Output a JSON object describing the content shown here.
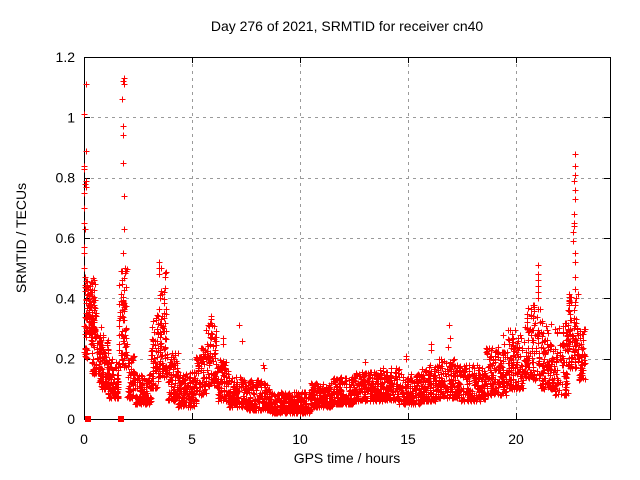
{
  "chart_data": {
    "type": "scatter",
    "title": "Day 276 of 2021, SRMTID for receiver cn40",
    "xlabel": "GPS time / hours",
    "ylabel": "SRMTID / TECUs",
    "xlim": [
      0,
      24.35
    ],
    "ylim": [
      0,
      1.2
    ],
    "xticks": [
      0,
      5,
      10,
      15,
      20
    ],
    "yticks": [
      0,
      0.2,
      0.4,
      0.6,
      0.8,
      1,
      1.2
    ],
    "ytick_labels": [
      "0",
      "0.2",
      "0.4",
      "0.6",
      "0.8",
      "1",
      "1.2"
    ],
    "grid": true,
    "grid_color": "#9a9a9a",
    "marker": "plus",
    "marker_color": "#ff0000",
    "border_color": "#000000",
    "band_key": [
      "t_start",
      "t_end",
      "y_min",
      "y_max",
      "n_points"
    ],
    "band_segments": [
      [
        0.0,
        0.15,
        0.2,
        0.46,
        40
      ],
      [
        0.15,
        0.55,
        0.28,
        0.47,
        90
      ],
      [
        0.3,
        0.8,
        0.15,
        0.32,
        70
      ],
      [
        0.7,
        1.15,
        0.1,
        0.28,
        75
      ],
      [
        1.1,
        1.6,
        0.07,
        0.2,
        85
      ],
      [
        1.6,
        2.0,
        0.17,
        0.5,
        80
      ],
      [
        2.0,
        2.35,
        0.07,
        0.22,
        60
      ],
      [
        2.35,
        3.1,
        0.05,
        0.15,
        115
      ],
      [
        3.1,
        3.45,
        0.1,
        0.35,
        60
      ],
      [
        3.45,
        3.85,
        0.14,
        0.5,
        70
      ],
      [
        3.85,
        4.35,
        0.06,
        0.22,
        80
      ],
      [
        4.35,
        5.2,
        0.04,
        0.16,
        130
      ],
      [
        5.2,
        5.65,
        0.08,
        0.25,
        70
      ],
      [
        5.65,
        6.15,
        0.11,
        0.32,
        75
      ],
      [
        6.15,
        6.7,
        0.06,
        0.2,
        80
      ],
      [
        6.7,
        7.5,
        0.04,
        0.14,
        115
      ],
      [
        7.5,
        8.6,
        0.03,
        0.13,
        155
      ],
      [
        8.6,
        10.5,
        0.02,
        0.09,
        265
      ],
      [
        10.5,
        11.5,
        0.04,
        0.12,
        140
      ],
      [
        11.5,
        12.5,
        0.05,
        0.14,
        140
      ],
      [
        12.5,
        13.6,
        0.06,
        0.16,
        150
      ],
      [
        13.6,
        14.6,
        0.06,
        0.17,
        140
      ],
      [
        14.6,
        15.6,
        0.05,
        0.15,
        140
      ],
      [
        15.6,
        16.4,
        0.06,
        0.18,
        110
      ],
      [
        16.4,
        17.4,
        0.07,
        0.2,
        135
      ],
      [
        17.4,
        18.6,
        0.06,
        0.18,
        165
      ],
      [
        18.6,
        19.6,
        0.08,
        0.24,
        140
      ],
      [
        19.6,
        20.4,
        0.1,
        0.3,
        115
      ],
      [
        20.4,
        21.1,
        0.13,
        0.38,
        105
      ],
      [
        21.1,
        21.8,
        0.1,
        0.33,
        105
      ],
      [
        21.8,
        22.4,
        0.08,
        0.33,
        90
      ],
      [
        22.4,
        22.9,
        0.17,
        0.42,
        85
      ],
      [
        22.9,
        23.2,
        0.13,
        0.3,
        45
      ]
    ],
    "outlier_columns": [
      {
        "t": 0.04,
        "values": [
          1.11,
          1.01,
          0.89,
          0.84,
          0.83,
          0.79,
          0.78,
          0.77,
          0.75,
          0.7,
          0.65,
          0.63,
          0.57,
          0.55,
          0.5,
          0.47
        ]
      },
      {
        "t": 1.82,
        "values": [
          1.13,
          1.12,
          1.11,
          1.06,
          0.97,
          0.94,
          0.85,
          0.74,
          0.63,
          0.55
        ]
      },
      {
        "t": 3.5,
        "values": [
          0.52,
          0.5,
          0.48
        ]
      },
      {
        "t": 5.9,
        "values": [
          0.34,
          0.33
        ]
      },
      {
        "t": 6.45,
        "values": [
          0.27,
          0.25
        ]
      },
      {
        "t": 7.2,
        "values": [
          0.31
        ]
      },
      {
        "t": 7.3,
        "values": [
          0.26
        ]
      },
      {
        "t": 8.3,
        "values": [
          0.18,
          0.17
        ]
      },
      {
        "t": 13.0,
        "values": [
          0.19
        ]
      },
      {
        "t": 14.9,
        "values": [
          0.21,
          0.2
        ]
      },
      {
        "t": 16.1,
        "values": [
          0.25,
          0.23
        ]
      },
      {
        "t": 16.9,
        "values": [
          0.31,
          0.27,
          0.24
        ]
      },
      {
        "t": 19.4,
        "values": [
          0.28,
          0.25
        ]
      },
      {
        "t": 21.0,
        "values": [
          0.51,
          0.48,
          0.46,
          0.44,
          0.42,
          0.4
        ]
      },
      {
        "t": 22.7,
        "values": [
          0.88,
          0.84,
          0.81,
          0.79,
          0.76,
          0.73,
          0.68,
          0.65,
          0.64,
          0.62,
          0.59,
          0.55,
          0.52,
          0.47,
          0.43
        ]
      }
    ],
    "zero_markers": [
      0.2,
      1.72
    ]
  }
}
